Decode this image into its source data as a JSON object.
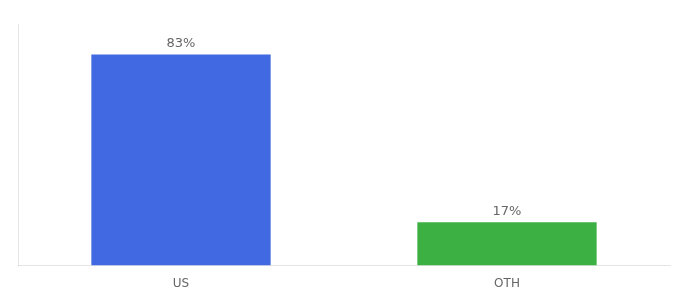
{
  "chart_data": {
    "type": "bar",
    "categories": [
      "US",
      "OTH"
    ],
    "values": [
      83,
      17
    ],
    "value_labels": [
      "83%",
      "17%"
    ],
    "colors": [
      "#4169e1",
      "#3cb043"
    ],
    "ylim": [
      0,
      95
    ],
    "yticks": [],
    "grid": false,
    "tick_labels": "x",
    "data_labels": true
  }
}
